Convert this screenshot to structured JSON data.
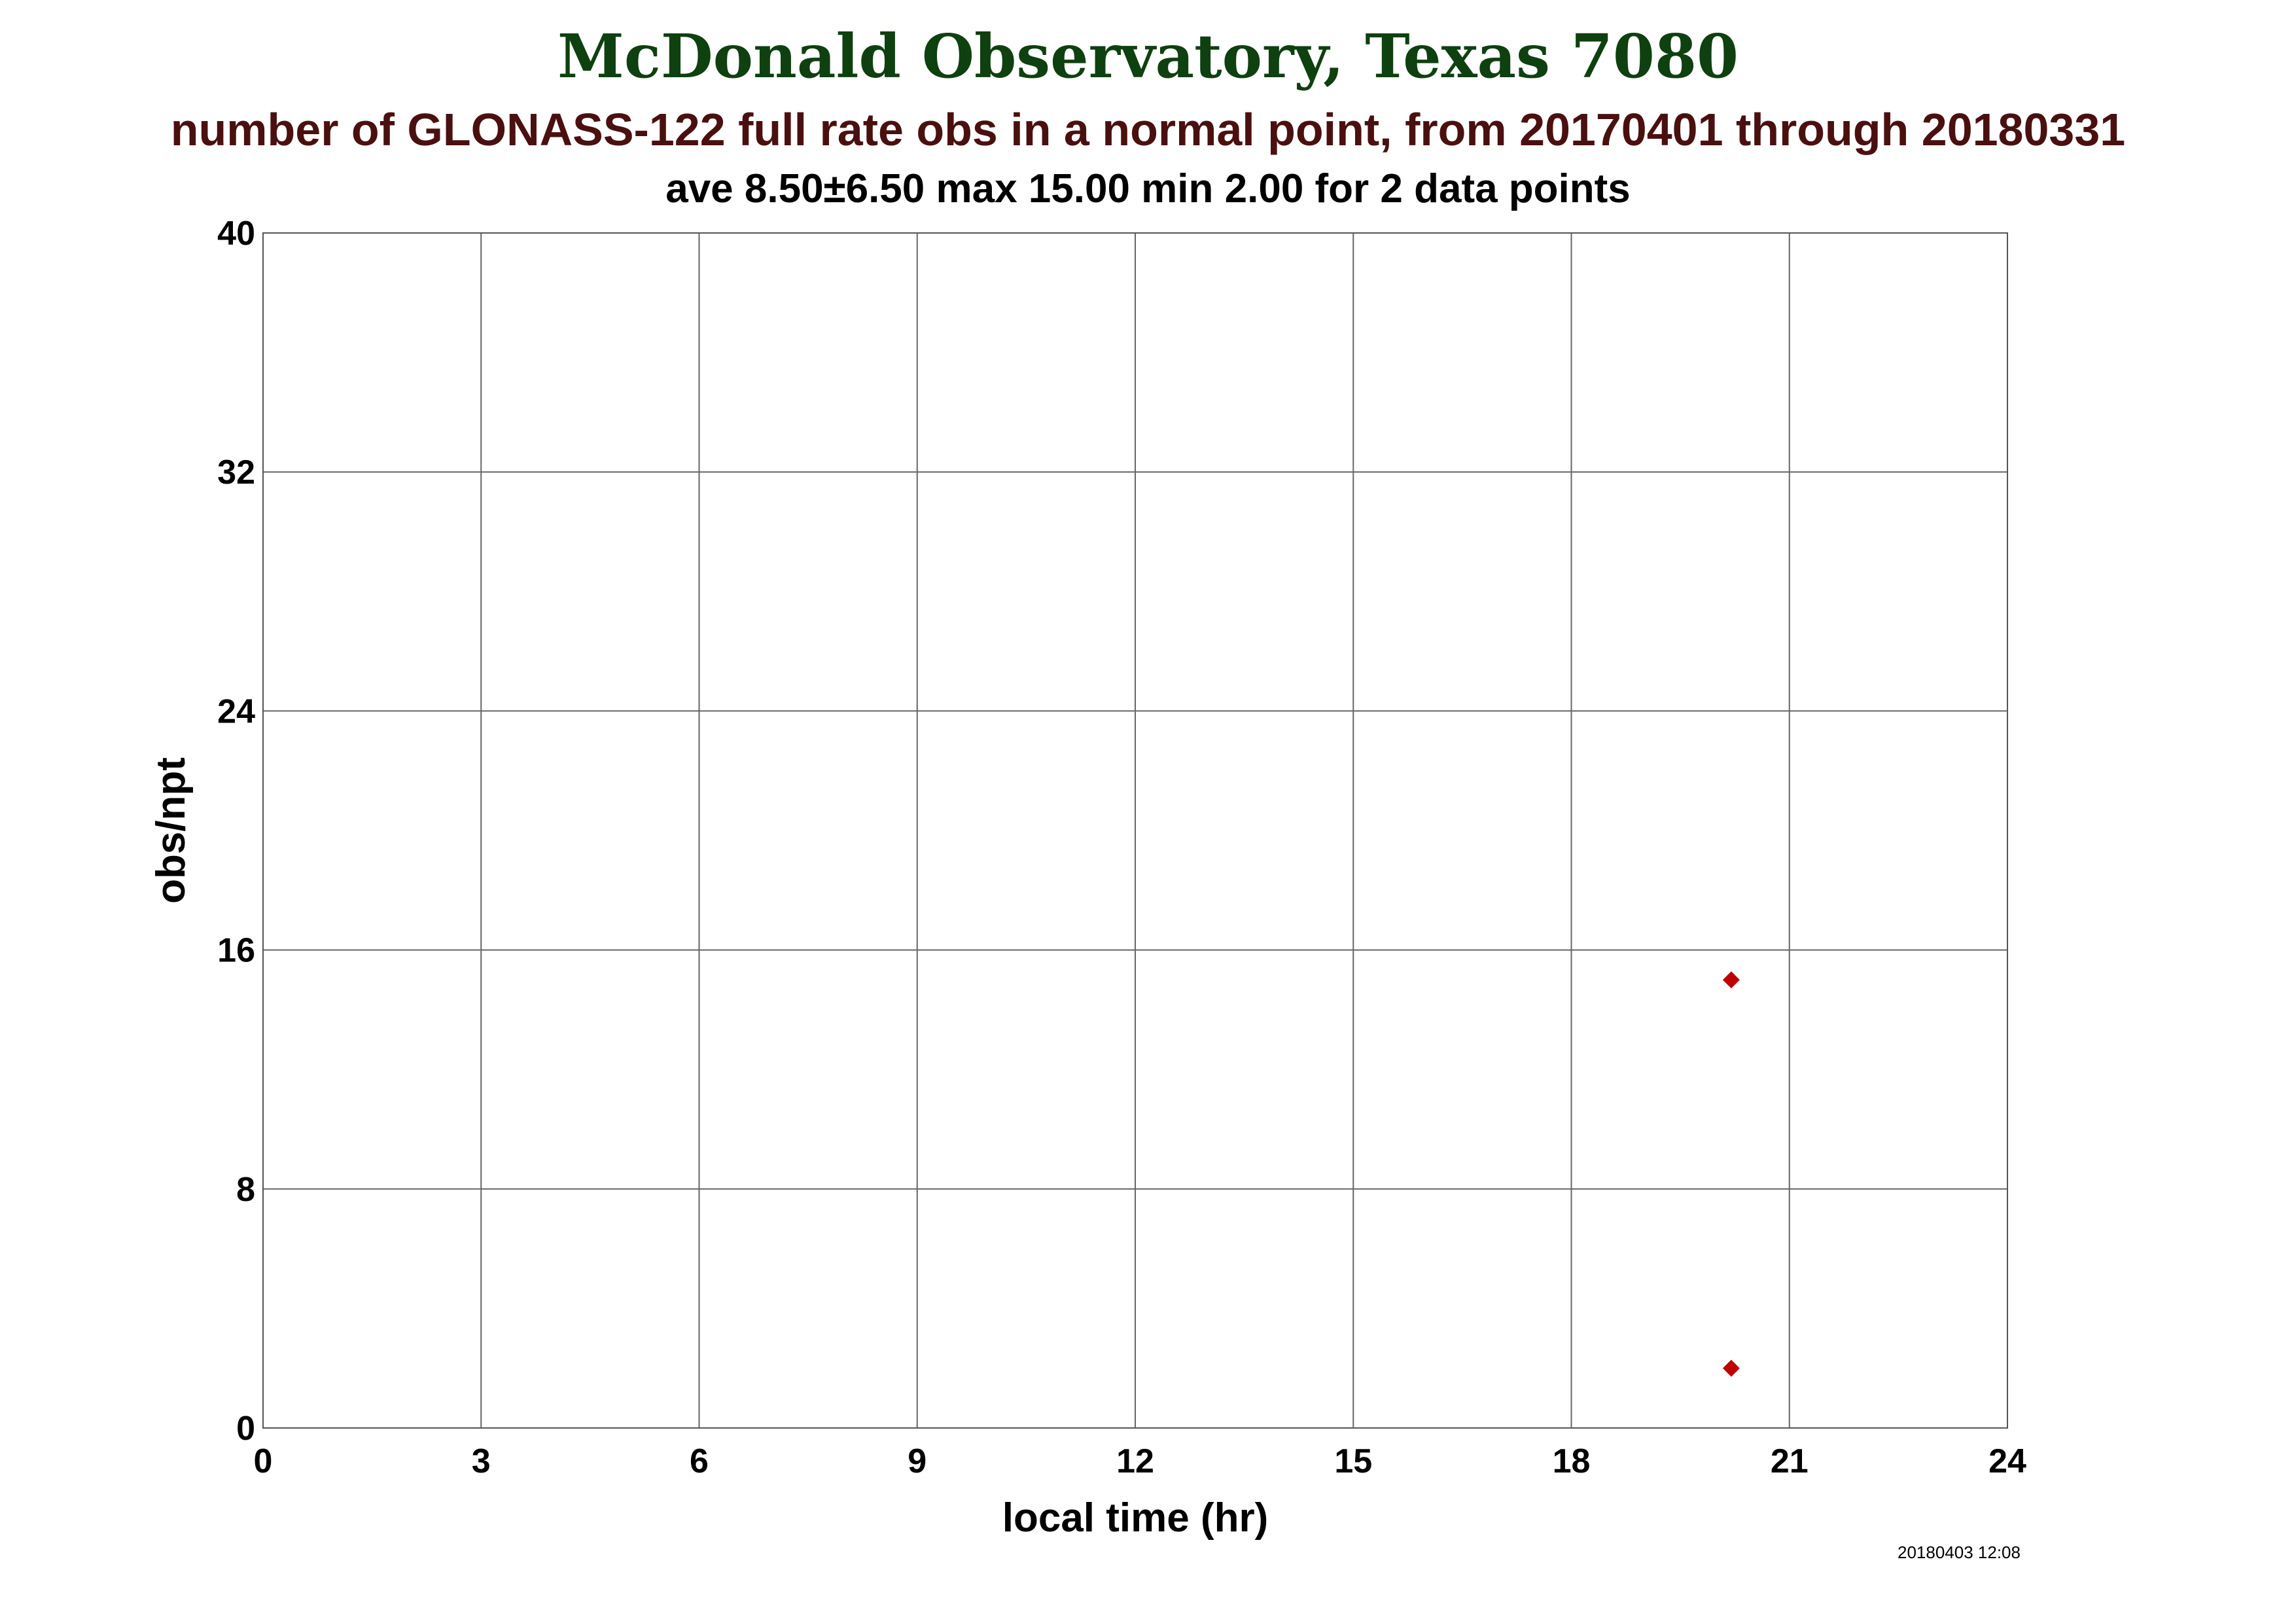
{
  "chart_data": {
    "type": "scatter",
    "title": "McDonald Observatory, Texas 7080",
    "subtitle": "number of GLONASS-122 full rate obs in a normal point, from 20170401 through 20180331",
    "stats": "ave 8.50±6.50 max 15.00 min 2.00 for 2 data points",
    "xlabel": "local time (hr)",
    "ylabel": "obs/npt",
    "xlim": [
      0,
      24
    ],
    "ylim": [
      0,
      40
    ],
    "x_ticks": [
      0,
      3,
      6,
      9,
      12,
      15,
      18,
      21,
      24
    ],
    "y_ticks": [
      0,
      8,
      16,
      24,
      32,
      40
    ],
    "grid": true,
    "marker": "diamond",
    "series": [
      {
        "points": [
          {
            "x": 20.2,
            "y": 15
          },
          {
            "x": 20.2,
            "y": 2
          }
        ]
      }
    ],
    "timestamp": "20180403 12:08"
  },
  "colors": {
    "title": "#0f4010",
    "subtitle": "#4a1010",
    "marker": "#c00000",
    "grid": "#666666"
  }
}
